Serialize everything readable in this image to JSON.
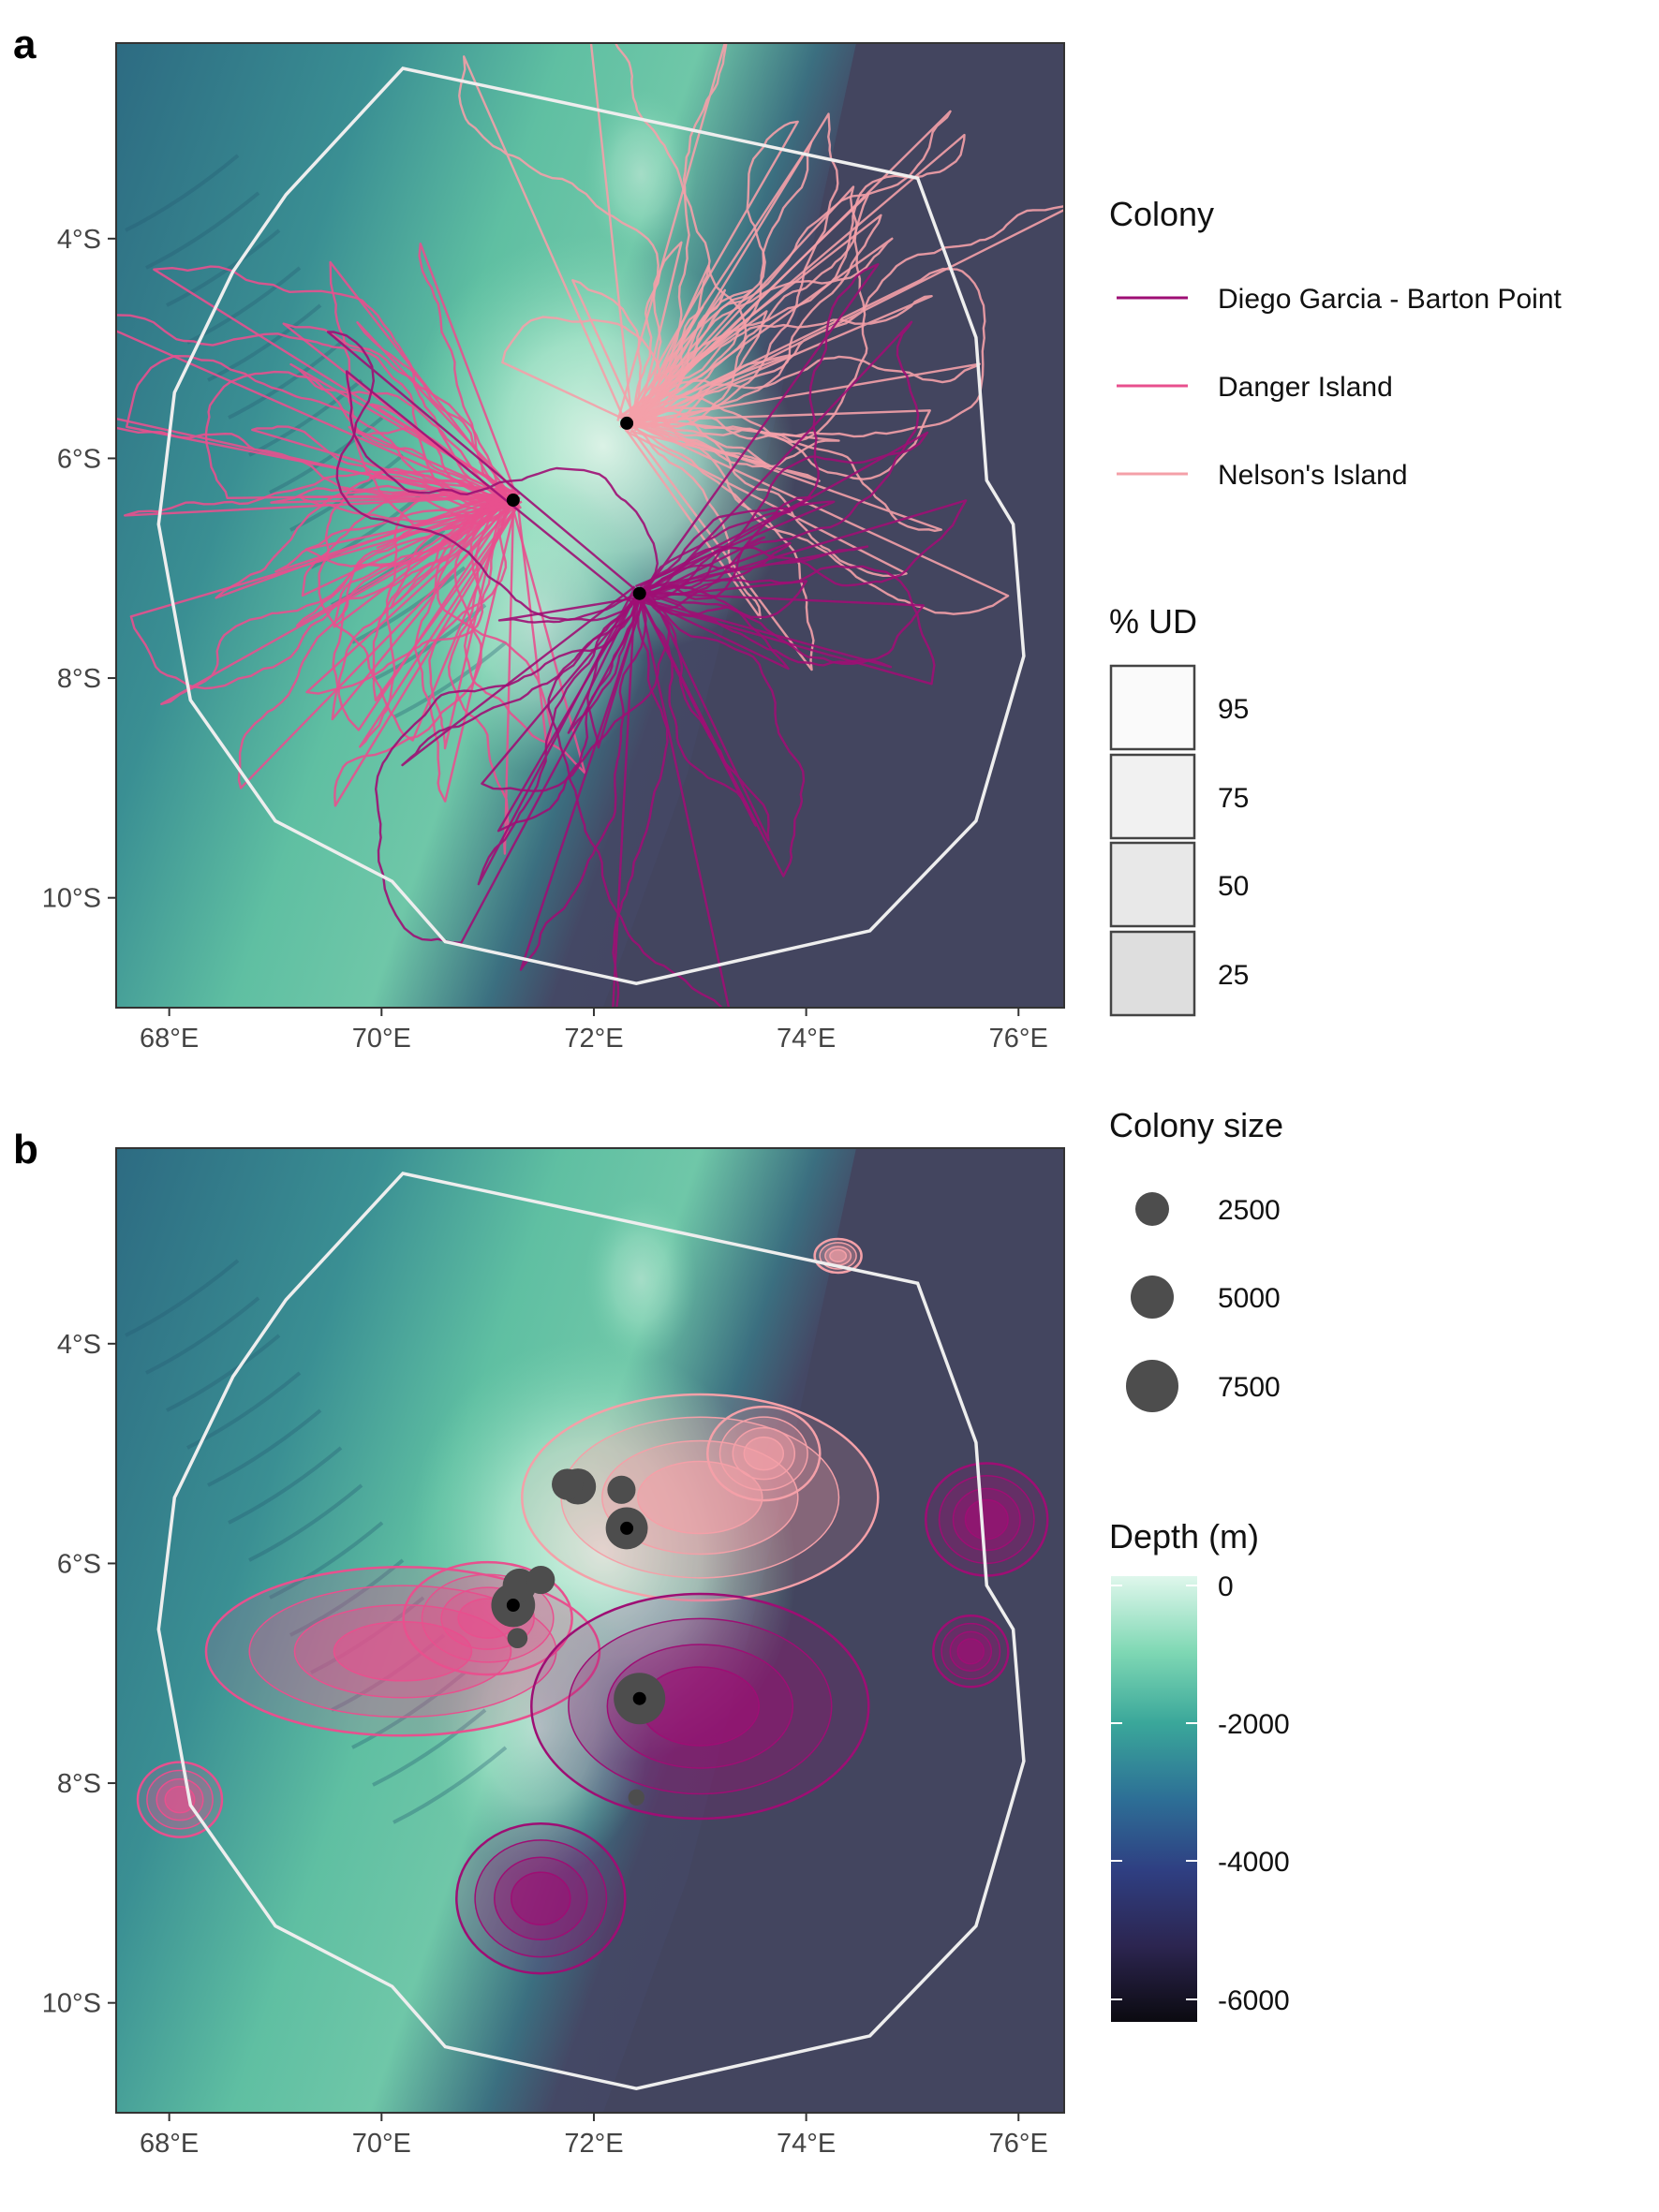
{
  "panels": [
    {
      "label": "a",
      "x_ticks": [
        "68°E",
        "70°E",
        "72°E",
        "74°E",
        "76°E"
      ],
      "y_ticks": [
        "4°S",
        "6°S",
        "8°S",
        "10°S"
      ]
    },
    {
      "label": "b",
      "x_ticks": [
        "68°E",
        "70°E",
        "72°E",
        "74°E",
        "76°E"
      ],
      "y_ticks": [
        "4°S",
        "6°S",
        "8°S",
        "10°S"
      ]
    }
  ],
  "legend_colony": {
    "title": "Colony",
    "items": [
      {
        "label": "Diego Garcia - Barton Point",
        "color": "#9e0e74"
      },
      {
        "label": "Danger Island",
        "color": "#e8508e"
      },
      {
        "label": "Nelson's Island",
        "color": "#f4a0a8"
      }
    ]
  },
  "legend_ud": {
    "title": "% UD",
    "items": [
      "95",
      "75",
      "50",
      "25"
    ]
  },
  "legend_size": {
    "title": "Colony size",
    "items": [
      "2500",
      "5000",
      "7500"
    ]
  },
  "legend_depth": {
    "title": "Depth (m)",
    "ticks": [
      "0",
      "-2000",
      "-4000",
      "-6000"
    ],
    "gradient": [
      "#dff7ec",
      "#7fd8b4",
      "#3aa79a",
      "#2d6f96",
      "#2f3f82",
      "#2c2550",
      "#0b0a10"
    ]
  },
  "chart_data": {
    "type": "map",
    "x_range_lon_E": [
      67.5,
      76.4
    ],
    "y_range_lat_S": [
      2.2,
      11.0
    ],
    "colonies": [
      {
        "name": "Diego Garcia - Barton Point",
        "lon": 72.43,
        "lat": -7.23,
        "size": 7500
      },
      {
        "name": "Danger Island",
        "lon": 71.24,
        "lat": -6.38,
        "size": 5000
      },
      {
        "name": "Nelson's Island",
        "lon": 72.31,
        "lat": -5.68,
        "size": 4500
      },
      {
        "name": "",
        "lon": 71.3,
        "lat": -6.2,
        "size": 2500
      },
      {
        "name": "",
        "lon": 71.5,
        "lat": -6.15,
        "size": 1500
      },
      {
        "name": "",
        "lon": 71.85,
        "lat": -5.3,
        "size": 3000
      },
      {
        "name": "",
        "lon": 71.75,
        "lat": -5.28,
        "size": 2000
      },
      {
        "name": "",
        "lon": 72.26,
        "lat": -5.33,
        "size": 1500
      },
      {
        "name": "",
        "lon": 71.28,
        "lat": -6.68,
        "size": 500
      },
      {
        "name": "",
        "lon": 72.4,
        "lat": -8.13,
        "size": 200
      }
    ]
  }
}
